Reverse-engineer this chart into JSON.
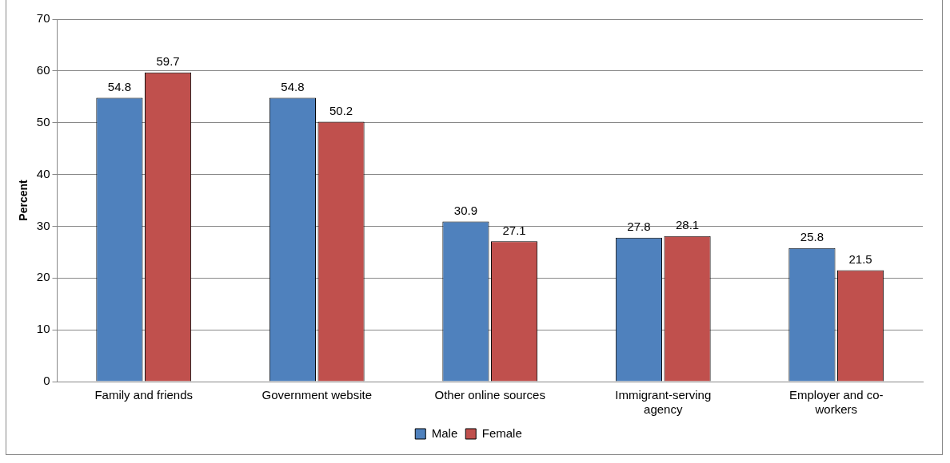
{
  "chart_data": {
    "type": "bar",
    "categories": [
      "Family and friends",
      "Government website",
      "Other online sources",
      "Immigrant-serving agency",
      "Employer and co-workers"
    ],
    "series": [
      {
        "name": "Male",
        "color": "#4f81bd",
        "values": [
          54.8,
          54.8,
          30.9,
          27.8,
          25.8
        ]
      },
      {
        "name": "Female",
        "color": "#c0504d",
        "values": [
          59.7,
          50.2,
          27.1,
          28.1,
          21.5
        ]
      }
    ],
    "ylabel": "Percent",
    "ylim": [
      0,
      70
    ],
    "yticks": [
      0,
      10,
      20,
      30,
      40,
      50,
      60,
      70
    ],
    "grid": "y",
    "legend": "bottom",
    "data_labels": true
  }
}
